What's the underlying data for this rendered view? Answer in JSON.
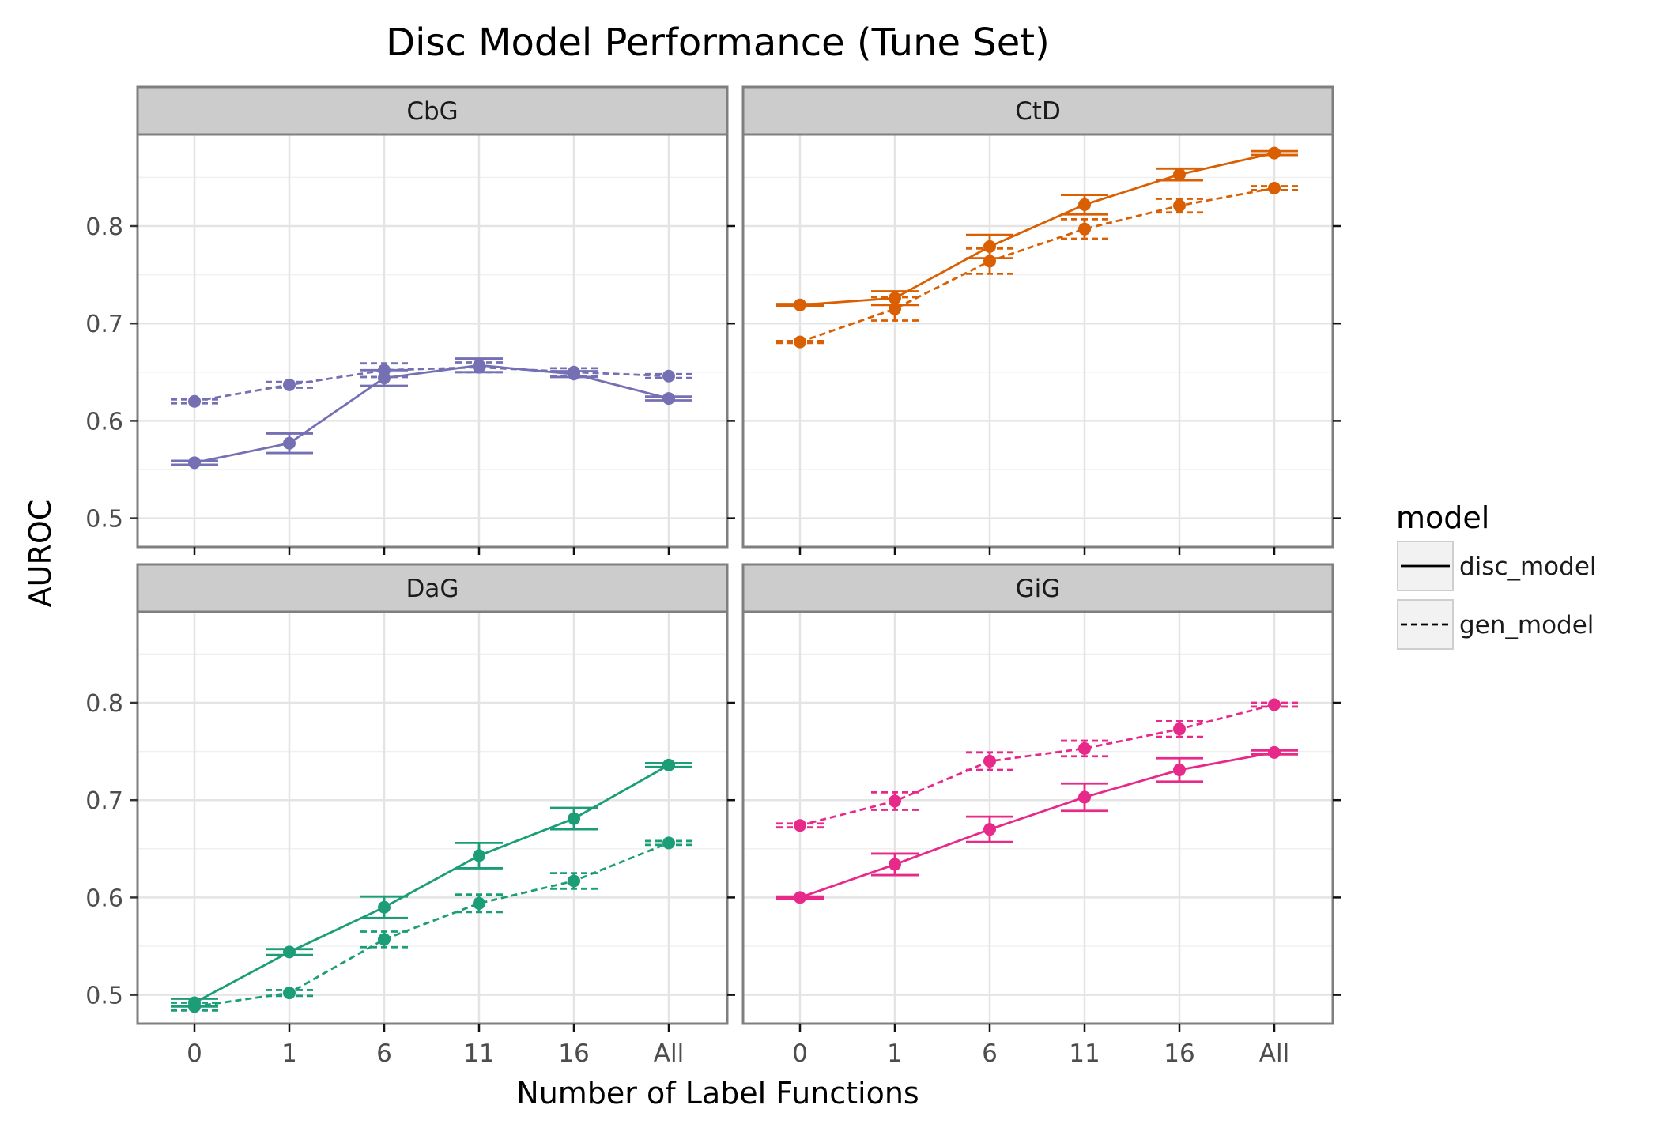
{
  "chart_data": {
    "type": "line",
    "title": "Disc Model Performance (Tune Set)",
    "xlabel": "Number of Label Functions",
    "ylabel": "AUROC",
    "categories": [
      "0",
      "1",
      "6",
      "11",
      "16",
      "All"
    ],
    "ylim": [
      0.47,
      0.9
    ],
    "yticks": [
      0.5,
      0.6,
      0.7,
      0.8
    ],
    "ytick_labels": [
      "0.5",
      "0.6",
      "0.7",
      "0.8"
    ],
    "grid": true,
    "legend": {
      "title": "model",
      "position": "right",
      "entries": [
        {
          "label": "disc_model",
          "style": "solid"
        },
        {
          "label": "gen_model",
          "style": "dashed"
        }
      ]
    },
    "panels": [
      {
        "title": "CbG",
        "color": "#7570b3",
        "series": [
          {
            "name": "disc_model",
            "values": [
              0.557,
              0.577,
              0.644,
              0.657,
              0.648,
              0.623
            ],
            "err": [
              0.002,
              0.01,
              0.008,
              0.007,
              0.003,
              0.002
            ]
          },
          {
            "name": "gen_model",
            "values": [
              0.62,
              0.637,
              0.652,
              0.655,
              0.65,
              0.646
            ],
            "err": [
              0.002,
              0.003,
              0.007,
              0.005,
              0.004,
              0.002
            ]
          }
        ]
      },
      {
        "title": "CtD",
        "color": "#d95f02",
        "series": [
          {
            "name": "disc_model",
            "values": [
              0.719,
              0.726,
              0.779,
              0.822,
              0.853,
              0.875
            ],
            "err": [
              0.001,
              0.007,
              0.012,
              0.01,
              0.006,
              0.002
            ]
          },
          {
            "name": "gen_model",
            "values": [
              0.681,
              0.715,
              0.764,
              0.797,
              0.821,
              0.839
            ],
            "err": [
              0.001,
              0.012,
              0.013,
              0.01,
              0.007,
              0.002
            ]
          }
        ]
      },
      {
        "title": "DaG",
        "color": "#1b9e77",
        "series": [
          {
            "name": "disc_model",
            "values": [
              0.492,
              0.544,
              0.59,
              0.643,
              0.681,
              0.736
            ],
            "err": [
              0.004,
              0.003,
              0.011,
              0.013,
              0.011,
              0.002
            ]
          },
          {
            "name": "gen_model",
            "values": [
              0.488,
              0.502,
              0.557,
              0.594,
              0.617,
              0.656
            ],
            "err": [
              0.004,
              0.003,
              0.008,
              0.009,
              0.008,
              0.002
            ]
          }
        ]
      },
      {
        "title": "GiG",
        "color": "#e7298a",
        "series": [
          {
            "name": "disc_model",
            "values": [
              0.6,
              0.634,
              0.67,
              0.703,
              0.731,
              0.749
            ],
            "err": [
              0.001,
              0.011,
              0.013,
              0.014,
              0.012,
              0.002
            ]
          },
          {
            "name": "gen_model",
            "values": [
              0.674,
              0.699,
              0.74,
              0.753,
              0.773,
              0.798
            ],
            "err": [
              0.002,
              0.009,
              0.009,
              0.008,
              0.008,
              0.002
            ]
          }
        ]
      }
    ]
  }
}
